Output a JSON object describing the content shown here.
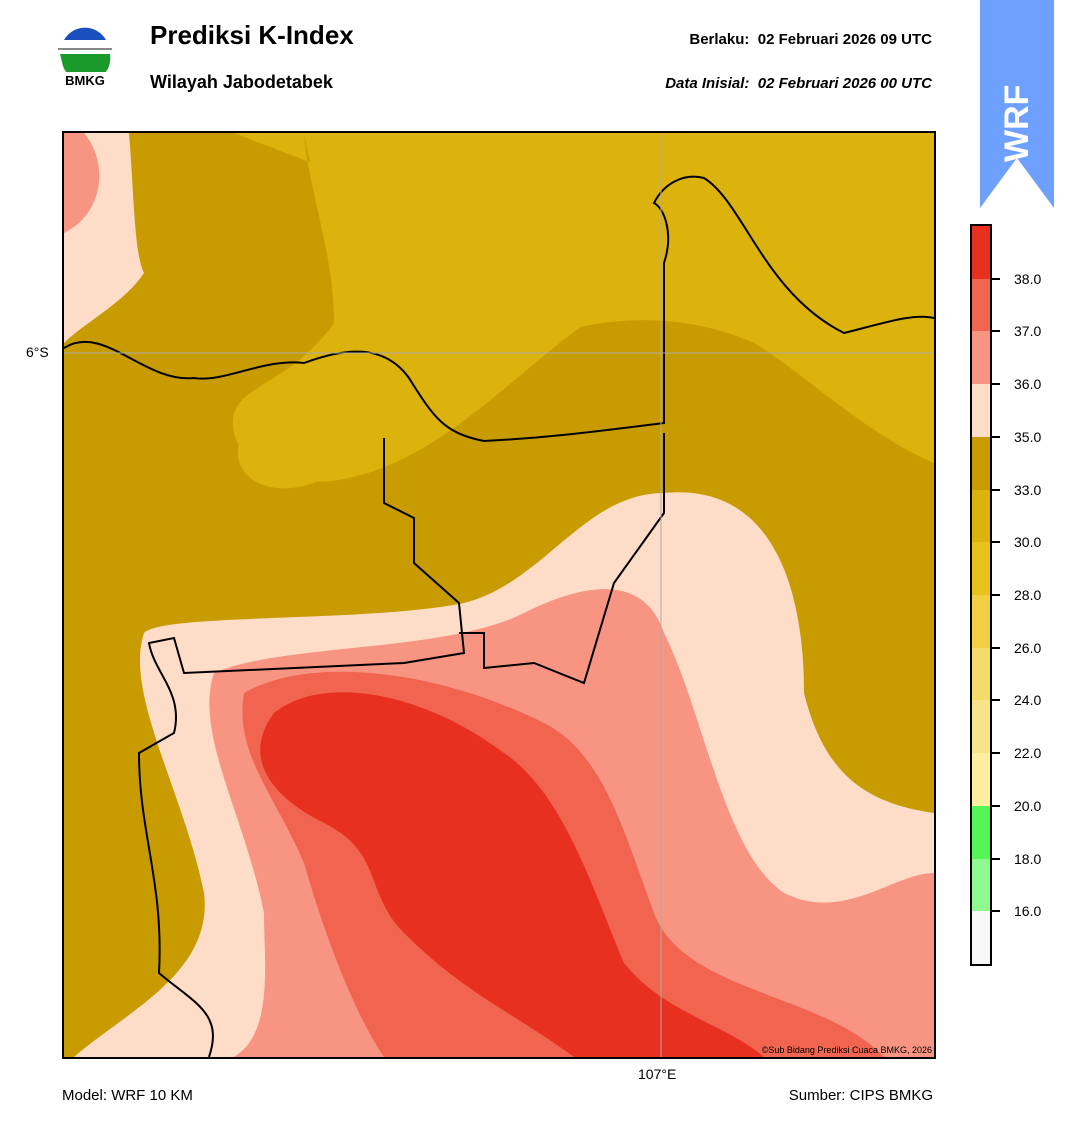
{
  "header": {
    "title": "Prediksi K-Index",
    "subtitle": "Wilayah Jabodetabek",
    "valid_label": "Berlaku:",
    "valid_time": "02 Februari 2026 09 UTC",
    "init_label": "Data Inisial:",
    "init_time": "02 Februari 2026 00 UTC",
    "logo_text": "BMKG",
    "wrf_badge": "WRF"
  },
  "map": {
    "lat_tick": "6°S",
    "lon_tick": "107°E",
    "credit": "©Sub Bidang Prediksi Cuaca BMKG, 2026"
  },
  "footer": {
    "model": "Model: WRF 10 KM",
    "source": "Sumber: CIPS BMKG"
  },
  "colorbar": {
    "labels": [
      "38.0",
      "37.0",
      "36.0",
      "35.0",
      "33.0",
      "30.0",
      "28.0",
      "26.0",
      "24.0",
      "22.0",
      "20.0",
      "18.0",
      "16.0"
    ],
    "colors": [
      "#e83020",
      "#f06450",
      "#f89482",
      "#fddcc8",
      "#c89c00",
      "#dcb20c",
      "#e8c21a",
      "#f0d040",
      "#f4dc68",
      "#f8e488",
      "#fdeea0",
      "#55f555",
      "#90f890",
      "#f8f8f8"
    ]
  }
}
